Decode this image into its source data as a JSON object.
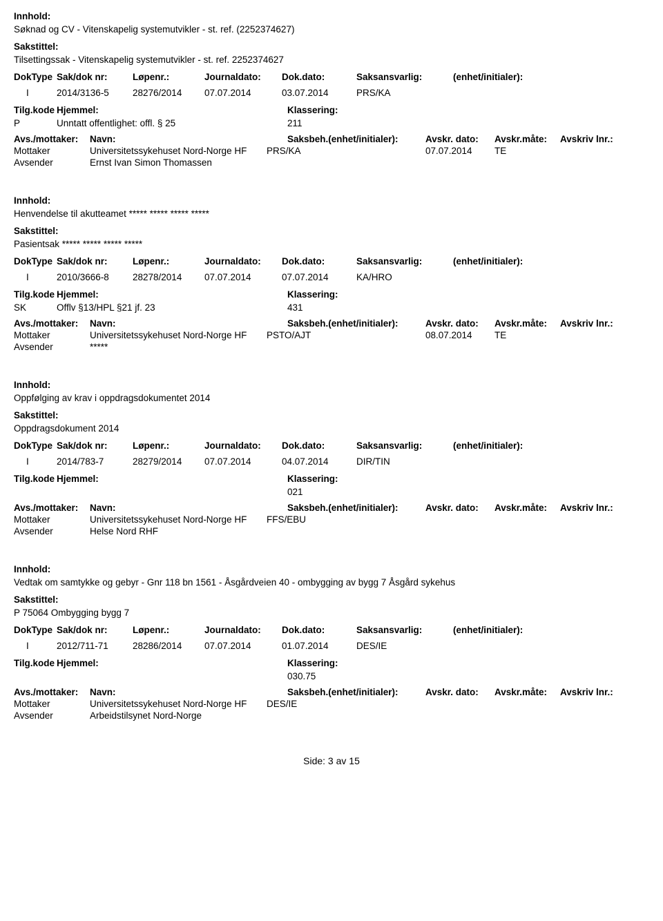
{
  "colors": {
    "text": "#000000",
    "background": "#ffffff"
  },
  "labels": {
    "innhold": "Innhold:",
    "sakstittel": "Sakstittel:",
    "doktype": "DokType",
    "sakdok": "Sak/dok nr:",
    "lopenr": "Løpenr.:",
    "journaldato": "Journaldato:",
    "dokdato": "Dok.dato:",
    "saksansvarlig": "Saksansvarlig:",
    "enhet": "(enhet/initialer):",
    "tilgkode": "Tilg.kode",
    "hjemmel": "Hjemmel:",
    "klassering": "Klassering:",
    "avsmottaker": "Avs./mottaker:",
    "navn": "Navn:",
    "saksbeh": "Saksbeh.(enhet/initialer):",
    "avskrdato": "Avskr. dato:",
    "avskrmate": "Avskr.måte:",
    "avskrivlnr": "Avskriv lnr.:",
    "mottaker": "Mottaker",
    "avsender": "Avsender"
  },
  "records": [
    {
      "innhold": "Søknad og CV - Vitenskapelig systemutvikler - st. ref. (2252374627)",
      "sakstittel": "Tilsettingssak - Vitenskapelig systemutvikler  - st. ref. 2252374627",
      "doktype": "I",
      "sakdok": "2014/3136-5",
      "lopenr": "28276/2014",
      "journaldato": "07.07.2014",
      "dokdato": "03.07.2014",
      "saksansvarlig": "PRS/KA",
      "tilgkode": "P",
      "hjemmel": "Unntatt offentlighet: offl. § 25",
      "klassering": "211",
      "parties": [
        {
          "role": "Mottaker",
          "navn": "Universitetssykehuset Nord-Norge HF",
          "saksbeh": "PRS/KA",
          "avskrdato": "07.07.2014",
          "avskrmate": "TE"
        },
        {
          "role": "Avsender",
          "navn": "Ernst Ivan  Simon Thomassen",
          "saksbeh": "",
          "avskrdato": "",
          "avskrmate": ""
        }
      ]
    },
    {
      "innhold": "Henvendelse til akutteamet ***** ***** ***** *****",
      "sakstittel": "Pasientsak ***** ***** ***** *****",
      "doktype": "I",
      "sakdok": "2010/3666-8",
      "lopenr": "28278/2014",
      "journaldato": "07.07.2014",
      "dokdato": "07.07.2014",
      "saksansvarlig": "KA/HRO",
      "tilgkode": "SK",
      "hjemmel": "Offlv §13/HPL §21 jf. 23",
      "klassering": "431",
      "parties": [
        {
          "role": "Mottaker",
          "navn": "Universitetssykehuset Nord-Norge HF",
          "saksbeh": "PSTO/AJT",
          "avskrdato": "08.07.2014",
          "avskrmate": "TE"
        },
        {
          "role": "Avsender",
          "navn": "*****",
          "saksbeh": "",
          "avskrdato": "",
          "avskrmate": ""
        }
      ]
    },
    {
      "innhold": "Oppfølging av krav i oppdragsdokumentet 2014",
      "sakstittel": "Oppdragsdokument 2014",
      "doktype": "I",
      "sakdok": "2014/783-7",
      "lopenr": "28279/2014",
      "journaldato": "07.07.2014",
      "dokdato": "04.07.2014",
      "saksansvarlig": "DIR/TIN",
      "tilgkode": "",
      "hjemmel": "",
      "klassering": "021",
      "parties": [
        {
          "role": "Mottaker",
          "navn": "Universitetssykehuset Nord-Norge HF",
          "saksbeh": "FFS/EBU",
          "avskrdato": "",
          "avskrmate": ""
        },
        {
          "role": "Avsender",
          "navn": "Helse Nord RHF",
          "saksbeh": "",
          "avskrdato": "",
          "avskrmate": ""
        }
      ]
    },
    {
      "innhold": "Vedtak om samtykke og gebyr - Gnr 118 bn 1561 - Åsgårdveien 40 - ombygging av bygg 7 Åsgård sykehus",
      "sakstittel": "P 75064 Ombygging bygg 7",
      "doktype": "I",
      "sakdok": "2012/711-71",
      "lopenr": "28286/2014",
      "journaldato": "07.07.2014",
      "dokdato": "01.07.2014",
      "saksansvarlig": "DES/IE",
      "tilgkode": "",
      "hjemmel": "",
      "klassering": "030.75",
      "parties": [
        {
          "role": "Mottaker",
          "navn": "Universitetssykehuset Nord-Norge HF",
          "saksbeh": "DES/IE",
          "avskrdato": "",
          "avskrmate": ""
        },
        {
          "role": "Avsender",
          "navn": "Arbeidstilsynet Nord-Norge",
          "saksbeh": "",
          "avskrdato": "",
          "avskrmate": ""
        }
      ]
    }
  ],
  "footer": "Side: 3 av 15"
}
